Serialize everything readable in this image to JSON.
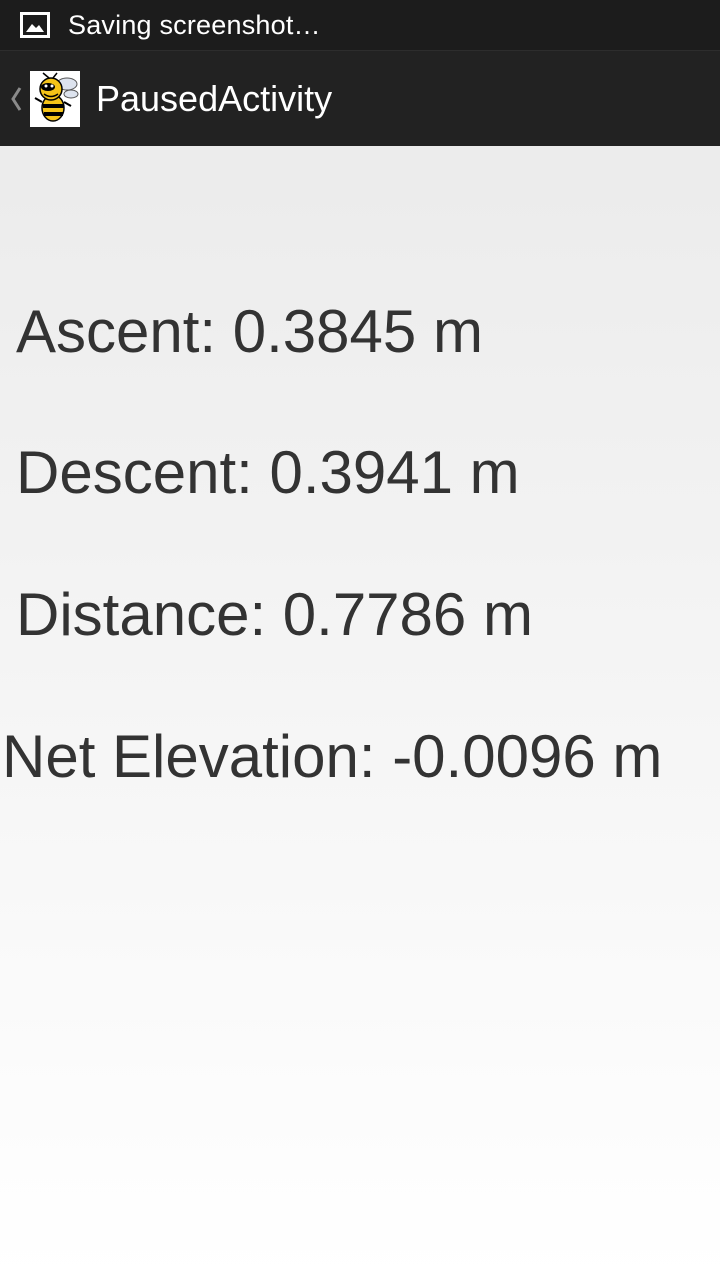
{
  "status_bar": {
    "notification_icon": "image-icon",
    "notification_text": "Saving screenshot…",
    "background_color": "#1c1c1c"
  },
  "action_bar": {
    "up_icon": "chevron-left-icon",
    "app_icon": "yellow-jacket-logo",
    "title": "PausedActivity",
    "background_color": "#222222"
  },
  "stats": {
    "ascent": "Ascent: 0.3845 m",
    "descent": "Descent: 0.3941 m",
    "distance": "Distance: 0.7786 m",
    "net_elevation": "Net Elevation: -0.0096 m",
    "text_color": "#333333"
  }
}
